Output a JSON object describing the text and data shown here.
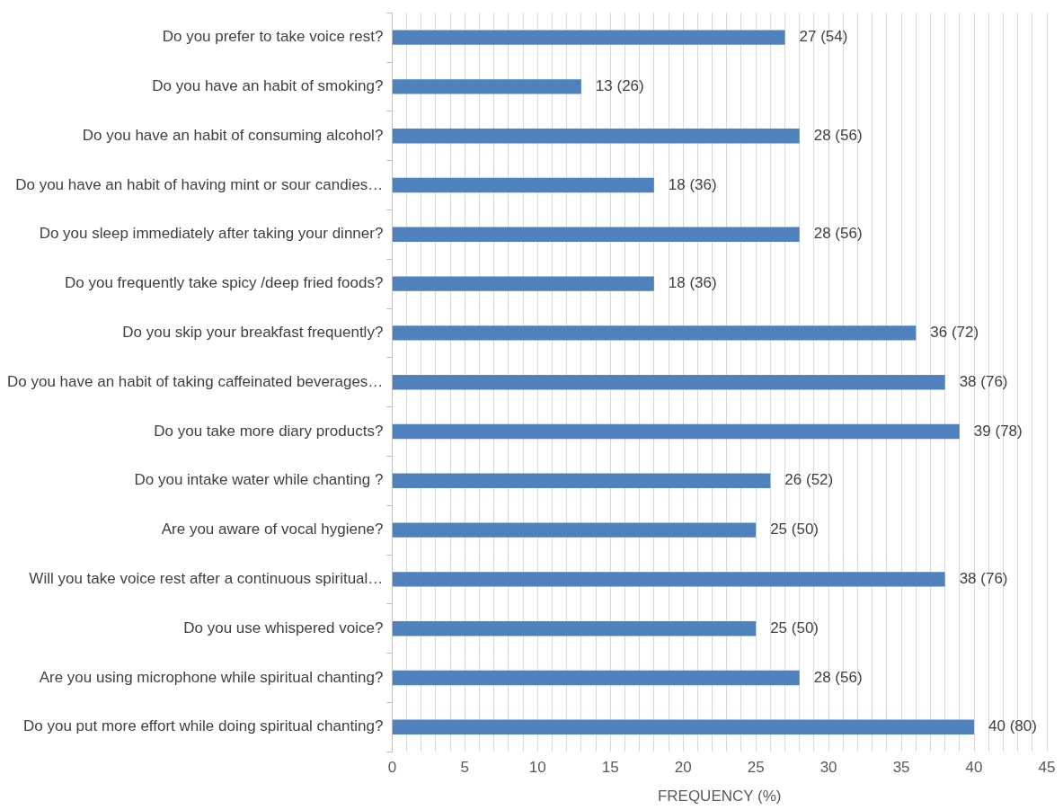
{
  "chart_data": {
    "type": "bar",
    "orientation": "horizontal",
    "xlabel": "FREQUENCY (%)",
    "categories": [
      "Do you prefer to take voice rest?",
      "Do you have an habit of smoking?",
      "Do you have an habit of consuming alcohol?",
      "Do you have an habit of having mint or sour candies…",
      "Do you sleep immediately after taking your dinner?",
      "Do you frequently take spicy /deep fried foods?",
      "Do you skip your breakfast frequently?",
      "Do you have an habit of taking caffeinated beverages…",
      "Do you take more diary products?",
      "Do you intake water while chanting ?",
      "Are you aware of vocal hygiene?",
      "Will you take voice rest after a continuous spiritual…",
      "Do you use whispered voice?",
      "Are you using microphone while spiritual chanting?",
      "Do you put more effort while doing spiritual chanting?"
    ],
    "values": [
      27,
      13,
      28,
      18,
      28,
      18,
      36,
      38,
      39,
      26,
      25,
      38,
      25,
      28,
      40
    ],
    "value_labels": [
      "27 (54)",
      "13 (26)",
      "28 (56)",
      "18 (36)",
      "28 (56)",
      "18 (36)",
      "36 (72)",
      "38 (76)",
      "39 (78)",
      "26 (52)",
      "25 (50)",
      "38 (76)",
      "25 (50)",
      "28 (56)",
      "40 (80)"
    ],
    "color": "#4f81bd",
    "xlim": [
      0,
      45
    ],
    "xticks": [
      0,
      {
        "value": 1,
        "label": null
      },
      {
        "value": 2,
        "label": null
      },
      {
        "value": 3,
        "label": null
      },
      {
        "value": 4,
        "label": null
      },
      5,
      {
        "value": 6,
        "label": null
      },
      {
        "value": 7,
        "label": null
      },
      {
        "value": 8,
        "label": null
      },
      {
        "value": 9,
        "label": null
      },
      10,
      {
        "value": 11,
        "label": null
      },
      {
        "value": 12,
        "label": null
      },
      {
        "value": 13,
        "label": null
      },
      {
        "value": 14,
        "label": null
      },
      15,
      {
        "value": 16,
        "label": null
      },
      {
        "value": 17,
        "label": null
      },
      {
        "value": 18,
        "label": null
      },
      {
        "value": 19,
        "label": null
      },
      20,
      {
        "value": 21,
        "label": null
      },
      {
        "value": 22,
        "label": null
      },
      {
        "value": 23,
        "label": null
      },
      {
        "value": 24,
        "label": null
      },
      25,
      {
        "value": 26,
        "label": null
      },
      {
        "value": 27,
        "label": null
      },
      {
        "value": 28,
        "label": null
      },
      {
        "value": 29,
        "label": null
      },
      30,
      {
        "value": 31,
        "label": null
      },
      {
        "value": 32,
        "label": null
      },
      {
        "value": 33,
        "label": null
      },
      {
        "value": 34,
        "label": null
      },
      35,
      {
        "value": 36,
        "label": null
      },
      {
        "value": 37,
        "label": null
      },
      {
        "value": 38,
        "label": null
      },
      {
        "value": 39,
        "label": null
      },
      40,
      {
        "value": 41,
        "label": null
      },
      {
        "value": 42,
        "label": null
      },
      {
        "value": 43,
        "label": null
      },
      {
        "value": 44,
        "label": null
      },
      45
    ],
    "grid": "x",
    "legend": false
  }
}
